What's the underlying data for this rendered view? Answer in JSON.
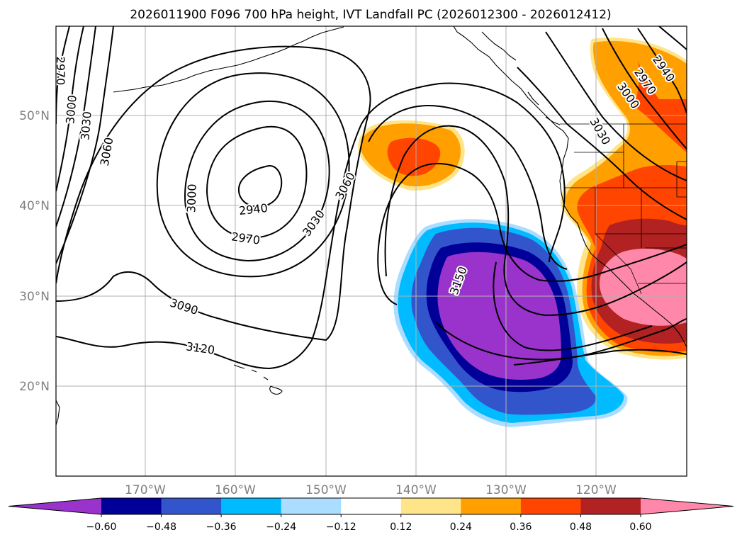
{
  "title": "2026011900 F096 700 hPa height, IVT Landfall PC (2026012300 - 2026012412)",
  "lat_labels": [
    "50°N",
    "40°N",
    "30°N",
    "20°N"
  ],
  "lon_labels": [
    "170°W",
    "160°W",
    "150°W",
    "140°W",
    "130°W",
    "120°W"
  ],
  "contour_labels": [
    "2970",
    "3000",
    "3030",
    "3060",
    "3000",
    "2940",
    "2970",
    "3030",
    "3060",
    "3090",
    "3120",
    "3150",
    "3030",
    "3000",
    "2970",
    "2940"
  ],
  "colorbar": {
    "ticks": [
      "−0.60",
      "−0.48",
      "−0.36",
      "−0.24",
      "−0.12",
      "0.12",
      "0.24",
      "0.36",
      "0.48",
      "0.60"
    ],
    "colors": [
      "#9933cc",
      "#000099",
      "#3355cc",
      "#00bbff",
      "#aaddff",
      "#ffffff",
      "#ffe58a",
      "#ffa000",
      "#ff4500",
      "#b22222",
      "#ff88aa"
    ]
  }
}
